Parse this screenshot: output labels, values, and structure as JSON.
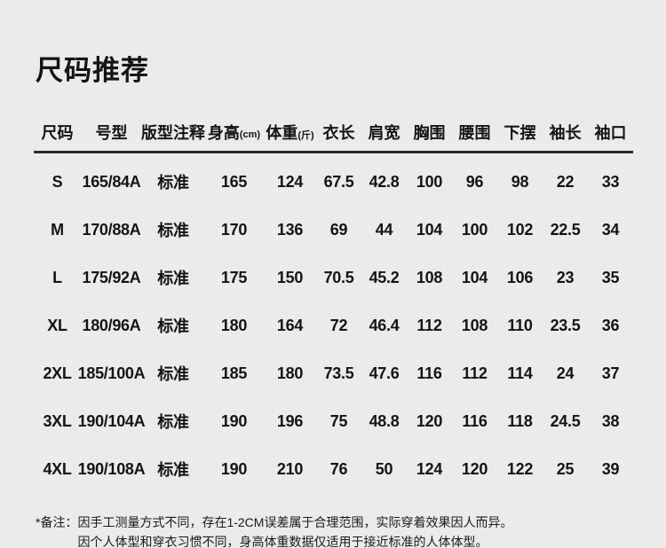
{
  "colors": {
    "background": "#ebebeb",
    "text": "#141414",
    "divider": "#2b2b2b"
  },
  "title": "尺码推荐",
  "table": {
    "headers": [
      {
        "label": "尺码"
      },
      {
        "label": "号型"
      },
      {
        "label": "版型注释"
      },
      {
        "label": "身高",
        "unit": "(cm)"
      },
      {
        "label": "体重",
        "unit": "(斤)"
      },
      {
        "label": "衣长"
      },
      {
        "label": "肩宽"
      },
      {
        "label": "胸围"
      },
      {
        "label": "腰围"
      },
      {
        "label": "下摆"
      },
      {
        "label": "袖长"
      },
      {
        "label": "袖口"
      }
    ],
    "rows": [
      [
        "S",
        "165/84A",
        "标准",
        "165",
        "124",
        "67.5",
        "42.8",
        "100",
        "96",
        "98",
        "22",
        "33"
      ],
      [
        "M",
        "170/88A",
        "标准",
        "170",
        "136",
        "69",
        "44",
        "104",
        "100",
        "102",
        "22.5",
        "34"
      ],
      [
        "L",
        "175/92A",
        "标准",
        "175",
        "150",
        "70.5",
        "45.2",
        "108",
        "104",
        "106",
        "23",
        "35"
      ],
      [
        "XL",
        "180/96A",
        "标准",
        "180",
        "164",
        "72",
        "46.4",
        "112",
        "108",
        "110",
        "23.5",
        "36"
      ],
      [
        "2XL",
        "185/100A",
        "标准",
        "185",
        "180",
        "73.5",
        "47.6",
        "116",
        "112",
        "114",
        "24",
        "37"
      ],
      [
        "3XL",
        "190/104A",
        "标准",
        "190",
        "196",
        "75",
        "48.8",
        "120",
        "116",
        "118",
        "24.5",
        "38"
      ],
      [
        "4XL",
        "190/108A",
        "标准",
        "190",
        "210",
        "76",
        "50",
        "124",
        "120",
        "122",
        "25",
        "39"
      ]
    ]
  },
  "note": {
    "prefix": "*备注：",
    "line1": "因手工测量方式不同，存在1-2CM误差属于合理范围，实际穿着效果因人而异。",
    "line2": "因个人体型和穿衣习惯不同，身高体重数据仅适用于接近标准的人体体型。"
  }
}
